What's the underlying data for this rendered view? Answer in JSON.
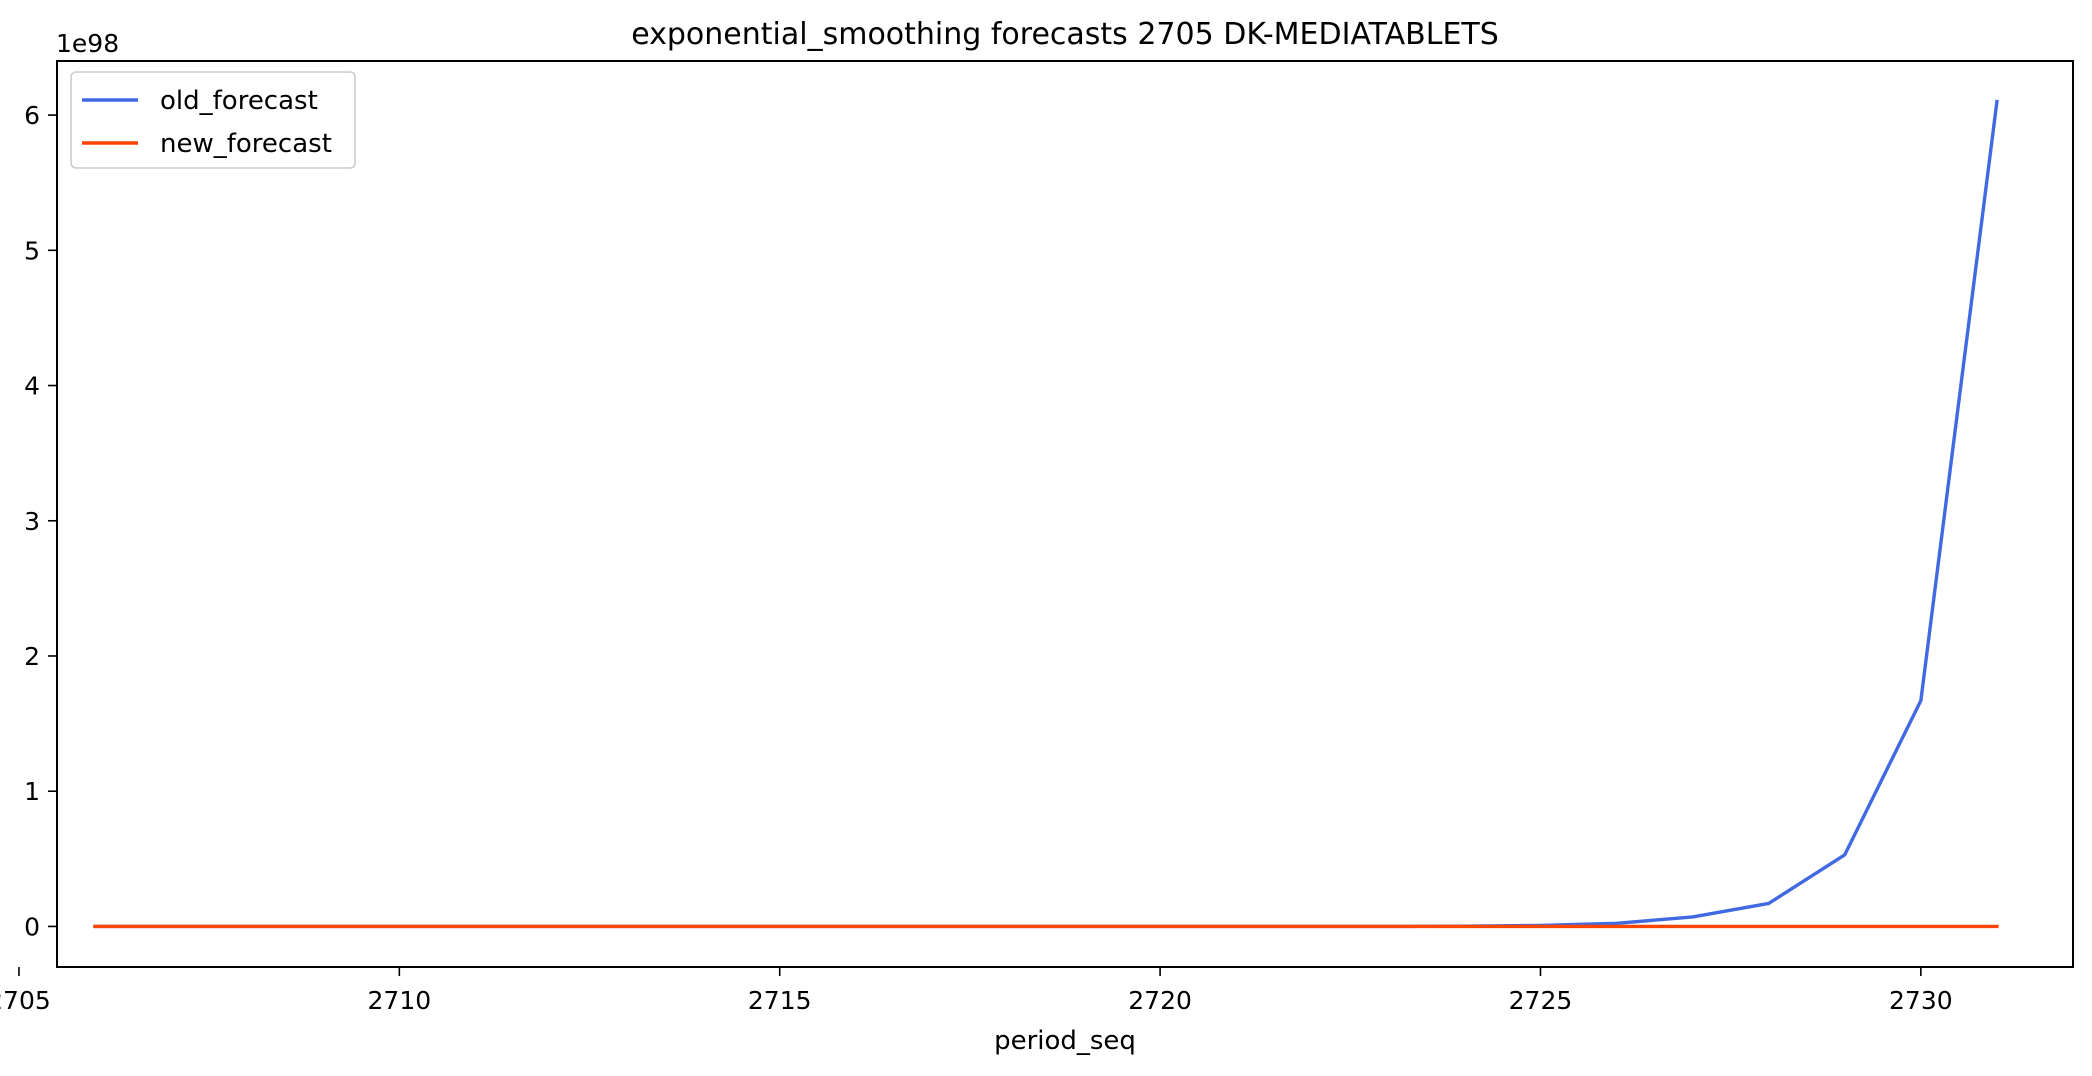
{
  "chart_data": {
    "type": "line",
    "title": "exponential_smoothing forecasts 2705 DK-MEDIATABLETS",
    "xlabel": "period_seq",
    "ylabel": "",
    "y_offset_text": "1e98",
    "y_scale_factor": 1e+98,
    "xlim": [
      2705.5,
      2732.0
    ],
    "ylim": [
      -0.3,
      6.4
    ],
    "x_ticks": [
      2705,
      2710,
      2715,
      2720,
      2725,
      2730
    ],
    "y_ticks": [
      0,
      1,
      2,
      3,
      4,
      5,
      6
    ],
    "legend_position": "upper-left",
    "grid": false,
    "x": [
      2706,
      2707,
      2708,
      2709,
      2710,
      2711,
      2712,
      2713,
      2714,
      2715,
      2716,
      2717,
      2718,
      2719,
      2720,
      2721,
      2722,
      2723,
      2724,
      2725,
      2726,
      2727,
      2728,
      2729,
      2730,
      2731
    ],
    "series": [
      {
        "name": "old_forecast",
        "color": "#4169e1",
        "values": [
          0,
          0,
          0,
          0,
          0,
          0,
          0,
          0,
          0,
          0,
          0,
          0,
          0,
          0,
          0,
          0,
          0,
          0,
          0.002,
          0.007,
          0.023,
          0.07,
          0.17,
          0.53,
          1.67,
          6.1
        ]
      },
      {
        "name": "new_forecast",
        "color": "#ff4500",
        "values": [
          0,
          0,
          0,
          0,
          0,
          0,
          0,
          0,
          0,
          0,
          0,
          0,
          0,
          0,
          0,
          0,
          0,
          0,
          0,
          0,
          0,
          0,
          0,
          0,
          0,
          0
        ]
      }
    ]
  }
}
